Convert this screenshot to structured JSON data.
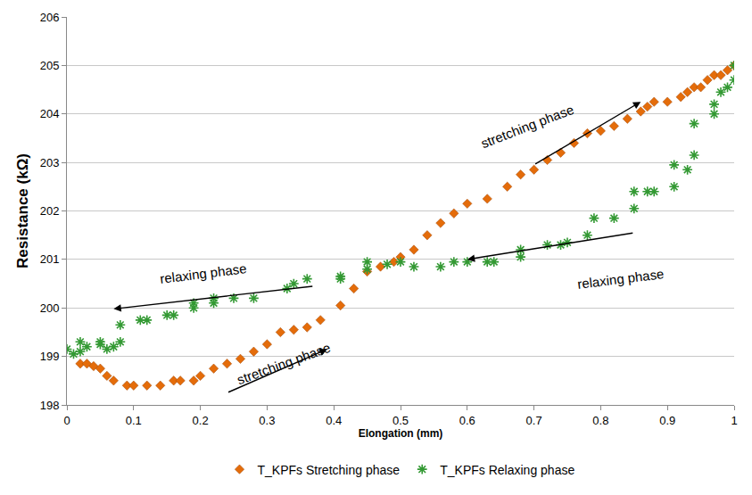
{
  "chart_data": {
    "type": "scatter",
    "x_label": "Elongation (mm)",
    "y_label": "Resistance (kΩ)",
    "xlim": [
      0,
      1
    ],
    "xticks": [
      0,
      0.1,
      0.2,
      0.3,
      0.4,
      0.5,
      0.6,
      0.7,
      0.8,
      0.9,
      1
    ],
    "ylim": [
      198,
      206
    ],
    "yticks": [
      198,
      199,
      200,
      201,
      202,
      203,
      204,
      205,
      206
    ],
    "grid": true,
    "legend": "bottom",
    "annotations": [
      "stretching phase",
      "stretching phase",
      "relaxing phase",
      "relaxing phase"
    ],
    "series": [
      {
        "name": "T_KPFs Stretching phase",
        "color": "#e46c0a",
        "marker": "diamond",
        "x": [
          0.02,
          0.03,
          0.04,
          0.05,
          0.06,
          0.07,
          0.09,
          0.1,
          0.12,
          0.14,
          0.16,
          0.17,
          0.19,
          0.2,
          0.22,
          0.24,
          0.26,
          0.28,
          0.3,
          0.32,
          0.34,
          0.36,
          0.38,
          0.41,
          0.43,
          0.45,
          0.47,
          0.49,
          0.5,
          0.52,
          0.54,
          0.56,
          0.58,
          0.6,
          0.63,
          0.66,
          0.68,
          0.7,
          0.72,
          0.74,
          0.76,
          0.78,
          0.8,
          0.82,
          0.84,
          0.86,
          0.87,
          0.88,
          0.9,
          0.92,
          0.93,
          0.94,
          0.95,
          0.96,
          0.97,
          0.98,
          0.99,
          1.0
        ],
        "values": [
          198.85,
          198.85,
          198.8,
          198.75,
          198.6,
          198.5,
          198.4,
          198.4,
          198.4,
          198.4,
          198.5,
          198.5,
          198.5,
          198.6,
          198.75,
          198.85,
          198.95,
          199.1,
          199.25,
          199.5,
          199.55,
          199.6,
          199.75,
          200.05,
          200.4,
          200.75,
          200.85,
          200.95,
          201.05,
          201.2,
          201.5,
          201.75,
          201.95,
          202.15,
          202.25,
          202.5,
          202.75,
          202.85,
          203.05,
          203.2,
          203.4,
          203.6,
          203.65,
          203.75,
          203.9,
          204.05,
          204.15,
          204.25,
          204.25,
          204.35,
          204.45,
          204.55,
          204.55,
          204.7,
          204.8,
          204.8,
          204.9,
          205.0
        ]
      },
      {
        "name": "T_KPFs Relaxing phase",
        "color": "#339933",
        "marker": "asterisk",
        "x": [
          1.0,
          1.0,
          0.99,
          0.98,
          0.97,
          0.97,
          0.94,
          0.94,
          0.93,
          0.91,
          0.91,
          0.88,
          0.87,
          0.85,
          0.85,
          0.82,
          0.79,
          0.78,
          0.75,
          0.74,
          0.72,
          0.68,
          0.68,
          0.64,
          0.63,
          0.6,
          0.58,
          0.56,
          0.52,
          0.5,
          0.48,
          0.45,
          0.45,
          0.41,
          0.41,
          0.36,
          0.34,
          0.33,
          0.28,
          0.25,
          0.22,
          0.22,
          0.19,
          0.19,
          0.16,
          0.15,
          0.12,
          0.11,
          0.08,
          0.08,
          0.07,
          0.06,
          0.05,
          0.05,
          0.03,
          0.02,
          0.02,
          0.01,
          0.0
        ],
        "values": [
          205.0,
          204.7,
          204.55,
          204.45,
          204.2,
          204.0,
          203.8,
          203.15,
          202.85,
          202.95,
          202.5,
          202.4,
          202.4,
          202.4,
          202.05,
          201.85,
          201.85,
          201.5,
          201.35,
          201.3,
          201.3,
          201.2,
          201.05,
          200.95,
          200.95,
          200.95,
          200.95,
          200.85,
          200.85,
          200.95,
          200.9,
          200.95,
          200.8,
          200.65,
          200.6,
          200.6,
          200.5,
          200.4,
          200.2,
          200.2,
          200.2,
          200.1,
          200.1,
          200.0,
          199.85,
          199.85,
          199.75,
          199.75,
          199.65,
          199.3,
          199.2,
          199.15,
          199.25,
          199.3,
          199.2,
          199.3,
          199.1,
          199.05,
          199.15
        ]
      }
    ]
  }
}
